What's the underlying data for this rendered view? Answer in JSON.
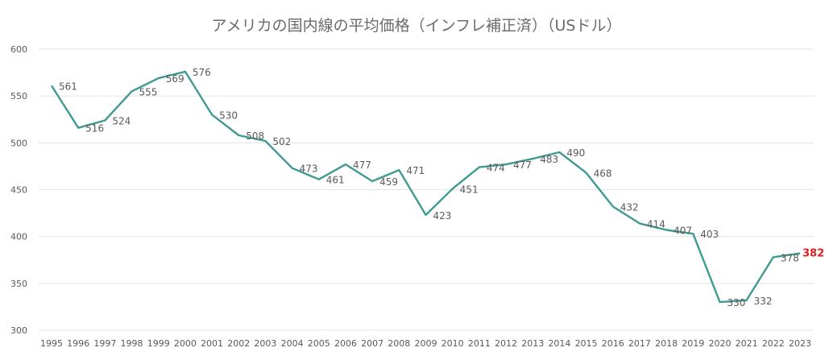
{
  "chart_data": {
    "type": "line",
    "title": "アメリカの国内線の平均価格（インフレ補正済）（USドル）",
    "xlabel": "",
    "ylabel": "",
    "ylim": [
      300,
      600
    ],
    "yticks": [
      300,
      350,
      400,
      450,
      500,
      550,
      600
    ],
    "grid": true,
    "categories": [
      "1995",
      "1996",
      "1997",
      "1998",
      "1999",
      "2000",
      "2001",
      "2002",
      "2003",
      "2004",
      "2005",
      "2006",
      "2007",
      "2008",
      "2009",
      "2010",
      "2011",
      "2012",
      "2013",
      "2014",
      "2015",
      "2016",
      "2017",
      "2018",
      "2019",
      "2020",
      "2021",
      "2022",
      "2023"
    ],
    "values": [
      561,
      516,
      524,
      555,
      569,
      576,
      530,
      508,
      502,
      473,
      461,
      477,
      459,
      471,
      423,
      451,
      474,
      477,
      483,
      490,
      468,
      432,
      414,
      407,
      403,
      330,
      332,
      378,
      382
    ],
    "highlight_index": 28,
    "colors": {
      "line": "#3f9a92",
      "highlight_label": "#e02020",
      "grid": "#e3e3e3",
      "text": "#595959"
    }
  }
}
